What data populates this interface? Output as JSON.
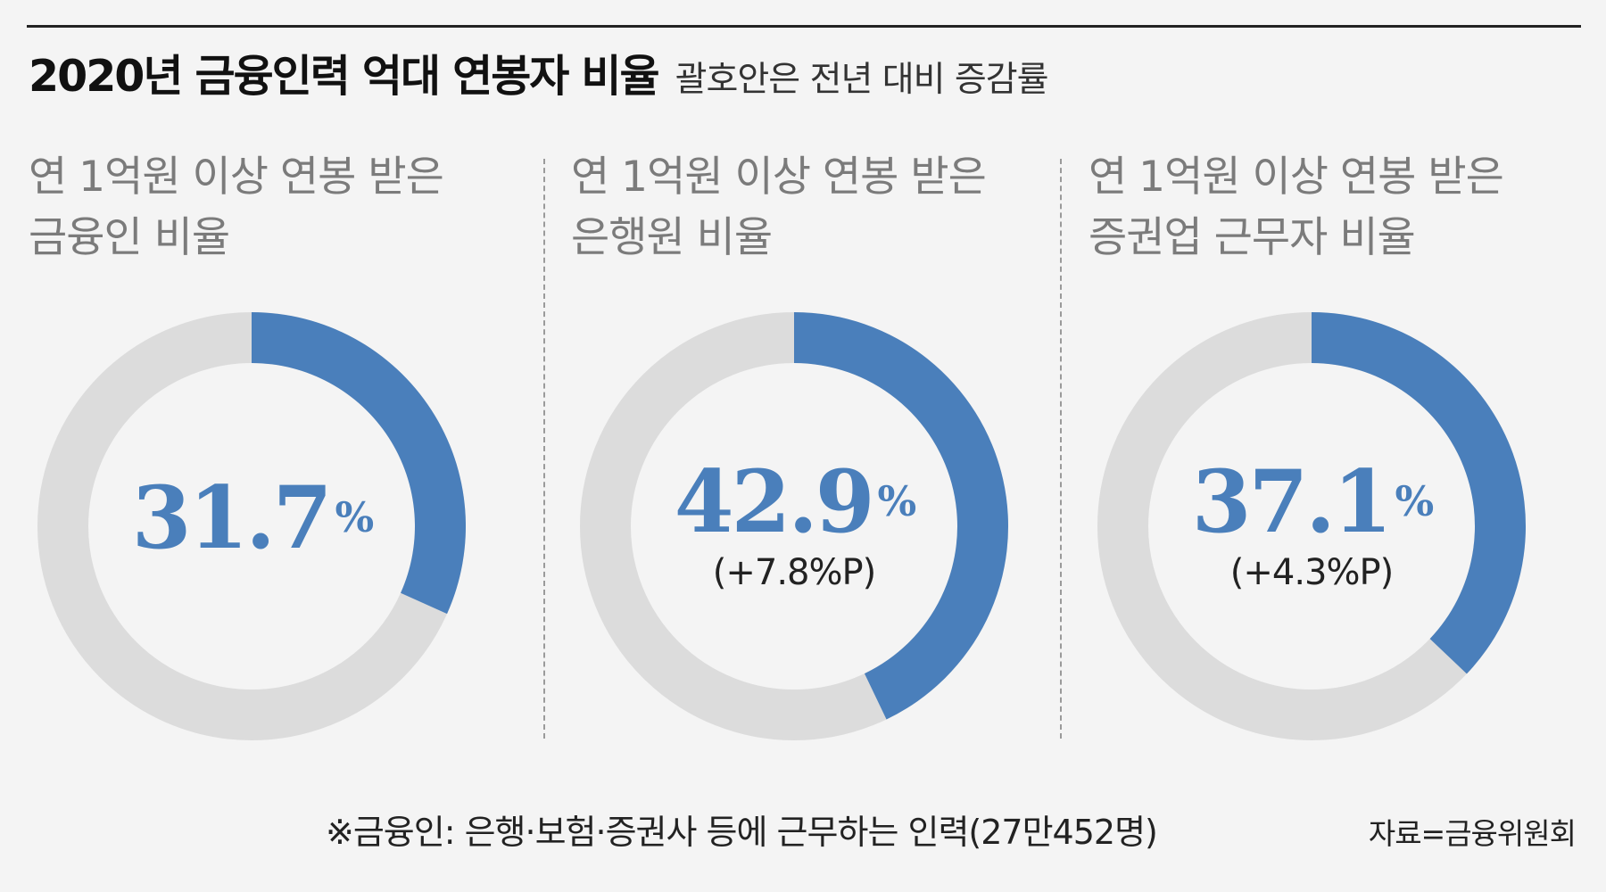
{
  "header": {
    "title": "2020년 금융인력 억대 연봉자 비율",
    "subtitle": "괄호안은 전년 대비 증감률"
  },
  "chart_data": [
    {
      "type": "pie",
      "title_lines": [
        "연 1억원 이상 연봉 받은",
        "금융인 비율"
      ],
      "value": 31.7,
      "value_label": "31.7",
      "unit": "%",
      "change_label": "",
      "colors": {
        "value": "#4a7fbb",
        "rest": "#dcdcdc"
      }
    },
    {
      "type": "pie",
      "title_lines": [
        "연 1억원 이상 연봉 받은",
        "은행원 비율"
      ],
      "value": 42.9,
      "value_label": "42.9",
      "unit": "%",
      "change_label": "(+7.8%P)",
      "colors": {
        "value": "#4a7fbb",
        "rest": "#dcdcdc"
      }
    },
    {
      "type": "pie",
      "title_lines": [
        "연 1억원 이상 연봉 받은",
        "증권업 근무자 비율"
      ],
      "value": 37.1,
      "value_label": "37.1",
      "unit": "%",
      "change_label": "(+4.3%P)",
      "colors": {
        "value": "#4a7fbb",
        "rest": "#dcdcdc"
      }
    }
  ],
  "footnote": "※금융인: 은행·보험·증권사 등에 근무하는 인력(27만452명)",
  "source": "자료=금융위원회"
}
